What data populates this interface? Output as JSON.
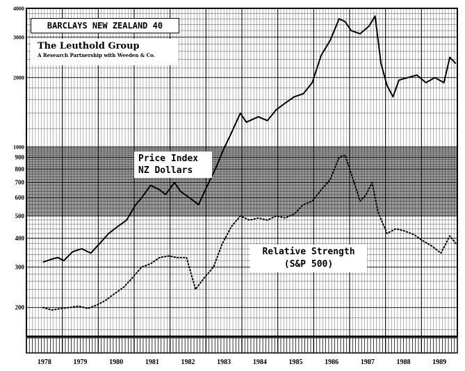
{
  "chart_data": {
    "type": "line",
    "title": "BARCLAYS NEW ZEALAND 40",
    "credit": "The Leuthold Group",
    "credit_sub": "A Research Partnership with Weeden & Co.",
    "y_scale": "log",
    "ylim": [
      150,
      4000
    ],
    "y_ticks": [
      200,
      300,
      400,
      500,
      600,
      700,
      800,
      900,
      1000,
      2000,
      3000,
      4000
    ],
    "y_tick_labels": [
      "200",
      "300",
      "400",
      "500",
      "600",
      "700",
      "800",
      "900",
      "1000",
      "2000",
      "3000",
      "4000"
    ],
    "x_range": [
      "1978-01",
      "1989-12"
    ],
    "x_tick_labels": [
      "1978",
      "1979",
      "1980",
      "1981",
      "1982",
      "1983",
      "1984",
      "1985",
      "1986",
      "1987",
      "1988",
      "1989"
    ],
    "grid": true,
    "series": [
      {
        "name": "Price Index NZ Dollars",
        "label_lines": [
          "Price Index",
          "NZ Dollars"
        ],
        "style": "solid",
        "points": [
          [
            "1978-06",
            315
          ],
          [
            "1978-09",
            325
          ],
          [
            "1978-11",
            330
          ],
          [
            "1979-01",
            320
          ],
          [
            "1979-04",
            350
          ],
          [
            "1979-07",
            360
          ],
          [
            "1979-10",
            345
          ],
          [
            "1980-01",
            380
          ],
          [
            "1980-04",
            420
          ],
          [
            "1980-07",
            450
          ],
          [
            "1980-10",
            480
          ],
          [
            "1981-01",
            560
          ],
          [
            "1981-03",
            600
          ],
          [
            "1981-06",
            680
          ],
          [
            "1981-09",
            650
          ],
          [
            "1981-11",
            620
          ],
          [
            "1982-02",
            700
          ],
          [
            "1982-04",
            640
          ],
          [
            "1982-07",
            600
          ],
          [
            "1982-10",
            560
          ],
          [
            "1983-01",
            680
          ],
          [
            "1983-04",
            820
          ],
          [
            "1983-06",
            950
          ],
          [
            "1983-09",
            1150
          ],
          [
            "1983-12",
            1400
          ],
          [
            "1984-02",
            1280
          ],
          [
            "1984-06",
            1350
          ],
          [
            "1984-09",
            1300
          ],
          [
            "1984-12",
            1450
          ],
          [
            "1985-03",
            1550
          ],
          [
            "1985-06",
            1650
          ],
          [
            "1985-09",
            1700
          ],
          [
            "1985-12",
            1900
          ],
          [
            "1986-03",
            2500
          ],
          [
            "1986-06",
            2900
          ],
          [
            "1986-09",
            3600
          ],
          [
            "1986-11",
            3500
          ],
          [
            "1987-01",
            3200
          ],
          [
            "1987-04",
            3100
          ],
          [
            "1987-07",
            3350
          ],
          [
            "1987-09",
            3700
          ],
          [
            "1987-11",
            2300
          ],
          [
            "1988-01",
            1850
          ],
          [
            "1988-03",
            1650
          ],
          [
            "1988-05",
            1950
          ],
          [
            "1988-08",
            2000
          ],
          [
            "1988-11",
            2050
          ],
          [
            "1989-02",
            1900
          ],
          [
            "1989-05",
            2000
          ],
          [
            "1989-08",
            1900
          ],
          [
            "1989-10",
            2450
          ],
          [
            "1989-12",
            2300
          ]
        ]
      },
      {
        "name": "Relative Strength (S&P 500)",
        "label_lines": [
          "Relative Strength",
          "(S&P 500)"
        ],
        "style": "dotted",
        "points": [
          [
            "1978-06",
            200
          ],
          [
            "1978-09",
            195
          ],
          [
            "1978-12",
            198
          ],
          [
            "1979-03",
            200
          ],
          [
            "1979-06",
            203
          ],
          [
            "1979-09",
            198
          ],
          [
            "1979-12",
            205
          ],
          [
            "1980-03",
            215
          ],
          [
            "1980-06",
            230
          ],
          [
            "1980-09",
            245
          ],
          [
            "1980-12",
            270
          ],
          [
            "1981-03",
            300
          ],
          [
            "1981-06",
            310
          ],
          [
            "1981-09",
            330
          ],
          [
            "1981-12",
            335
          ],
          [
            "1982-03",
            330
          ],
          [
            "1982-06",
            330
          ],
          [
            "1982-09",
            240
          ],
          [
            "1982-12",
            270
          ],
          [
            "1983-03",
            300
          ],
          [
            "1983-06",
            380
          ],
          [
            "1983-09",
            450
          ],
          [
            "1983-12",
            500
          ],
          [
            "1984-03",
            480
          ],
          [
            "1984-06",
            490
          ],
          [
            "1984-09",
            480
          ],
          [
            "1984-12",
            500
          ],
          [
            "1985-03",
            490
          ],
          [
            "1985-06",
            510
          ],
          [
            "1985-09",
            560
          ],
          [
            "1985-12",
            580
          ],
          [
            "1986-03",
            650
          ],
          [
            "1986-06",
            720
          ],
          [
            "1986-09",
            900
          ],
          [
            "1986-11",
            920
          ],
          [
            "1987-02",
            700
          ],
          [
            "1987-04",
            580
          ],
          [
            "1987-06",
            620
          ],
          [
            "1987-08",
            700
          ],
          [
            "1987-10",
            520
          ],
          [
            "1988-01",
            420
          ],
          [
            "1988-04",
            440
          ],
          [
            "1988-07",
            430
          ],
          [
            "1988-10",
            415
          ],
          [
            "1989-01",
            390
          ],
          [
            "1989-04",
            370
          ],
          [
            "1989-07",
            345
          ],
          [
            "1989-10",
            410
          ],
          [
            "1989-12",
            380
          ]
        ]
      }
    ]
  }
}
